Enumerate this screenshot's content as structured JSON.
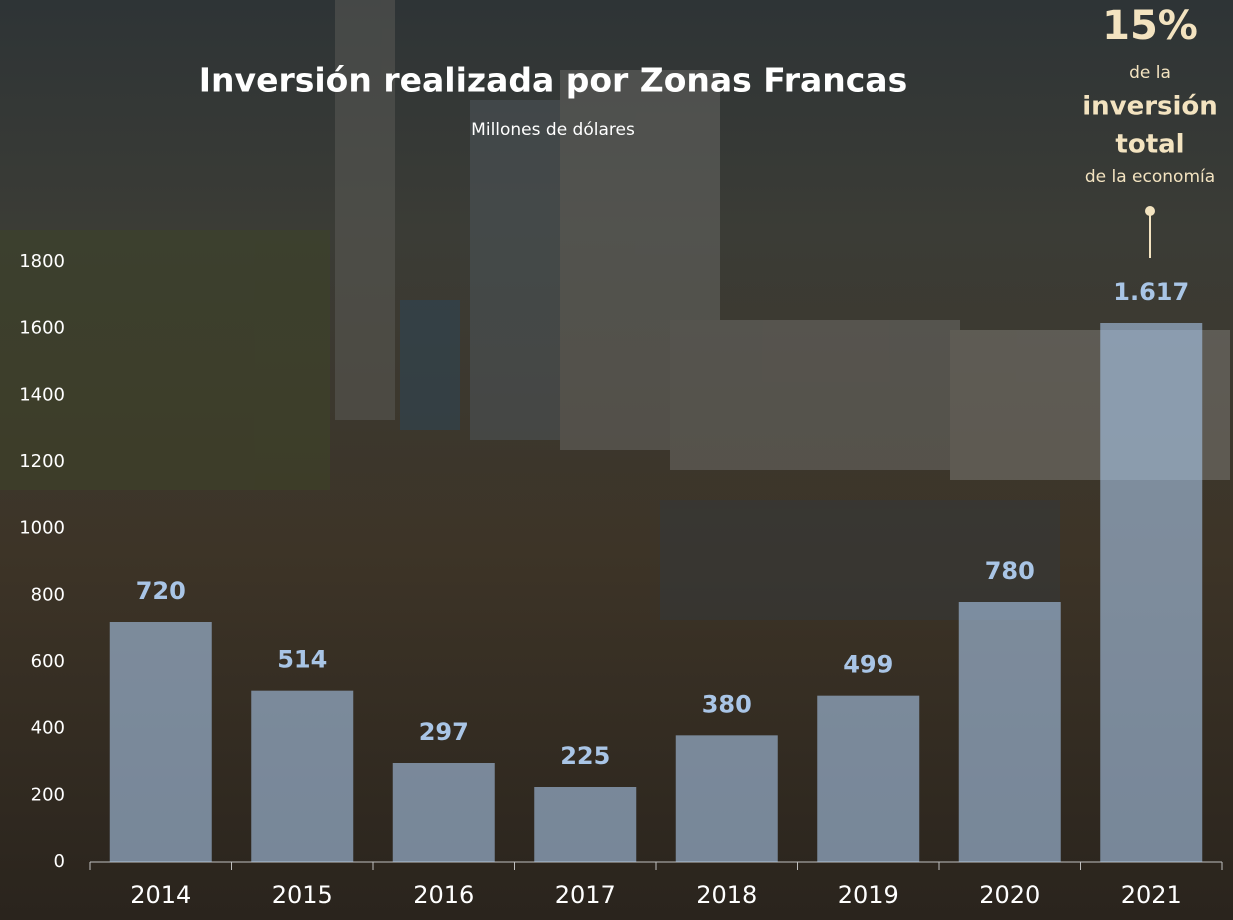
{
  "chart_data": {
    "type": "bar",
    "title": "Inversión realizada por Zonas Francas",
    "subtitle": "Millones de dólares",
    "categories": [
      "2014",
      "2015",
      "2016",
      "2017",
      "2018",
      "2019",
      "2020",
      "2021"
    ],
    "values": [
      720,
      514,
      297,
      225,
      380,
      499,
      780,
      1617
    ],
    "value_labels": [
      "720",
      "514",
      "297",
      "225",
      "380",
      "499",
      "780",
      "1.617"
    ],
    "color": "#aac8eb",
    "ylim": [
      0,
      1800
    ],
    "yticks": [
      0,
      200,
      400,
      600,
      800,
      1000,
      1200,
      1400,
      1600,
      1800
    ],
    "annotation": [
      "15%",
      "de la",
      "inversión",
      "total",
      "de la economía"
    ]
  }
}
